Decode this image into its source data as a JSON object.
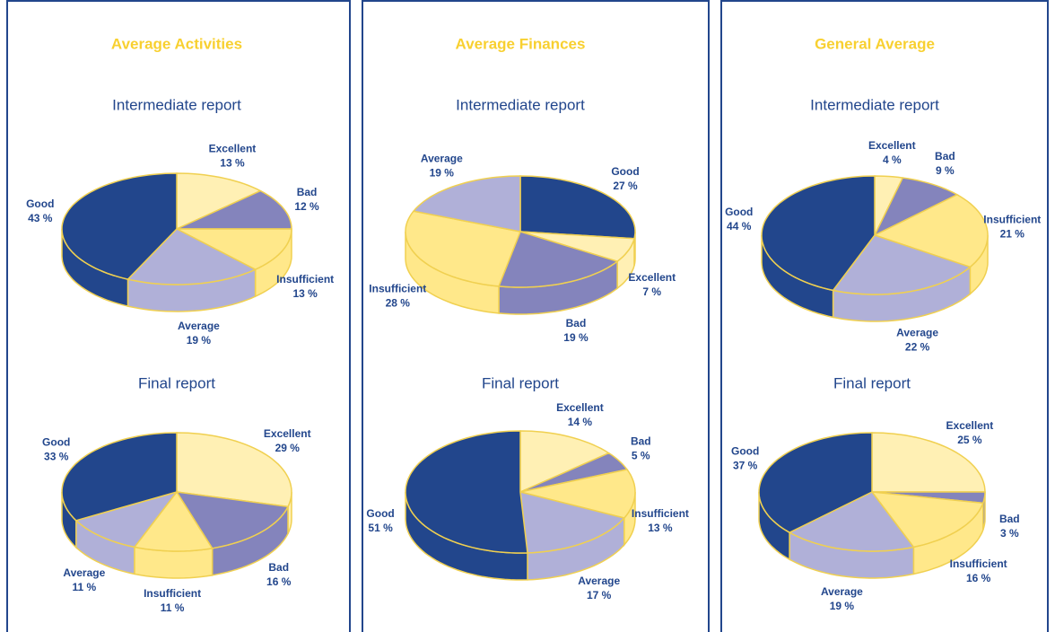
{
  "chart_data": [
    {
      "type": "pie",
      "title": "Average Activities",
      "subtitle": "Intermediate report",
      "categories": [
        "Excellent",
        "Bad",
        "Insufficient",
        "Average",
        "Good"
      ],
      "values": [
        13,
        12,
        13,
        19,
        43
      ],
      "value_labels": [
        "13 %",
        "12 %",
        "13 %",
        "19 %",
        "43 %"
      ],
      "colors": [
        "#fff0b4",
        "#8484bc",
        "#ffe88a",
        "#b0b0d8",
        "#22468c"
      ]
    },
    {
      "type": "pie",
      "subtitle": "Final report",
      "categories": [
        "Excellent",
        "Bad",
        "Insufficient",
        "Average",
        "Good"
      ],
      "values": [
        29,
        16,
        11,
        11,
        33
      ],
      "value_labels": [
        "29 %",
        "16 %",
        "11 %",
        "11 %",
        "33 %"
      ],
      "colors": [
        "#fff0b4",
        "#8484bc",
        "#ffe88a",
        "#b0b0d8",
        "#22468c"
      ]
    },
    {
      "type": "pie",
      "title": "Average Finances",
      "subtitle": "Intermediate report",
      "categories": [
        "Good",
        "Excellent",
        "Bad",
        "Insufficient",
        "Average"
      ],
      "values": [
        27,
        7,
        19,
        28,
        19
      ],
      "value_labels": [
        "27 %",
        "7 %",
        "19 %",
        "28 %",
        "19 %"
      ],
      "colors": [
        "#22468c",
        "#fff0b4",
        "#8484bc",
        "#ffe88a",
        "#b0b0d8"
      ]
    },
    {
      "type": "pie",
      "subtitle": "Final report",
      "categories": [
        "Excellent",
        "Bad",
        "Insufficient",
        "Average",
        "Good"
      ],
      "values": [
        14,
        5,
        13,
        17,
        51
      ],
      "value_labels": [
        "14 %",
        "5 %",
        "13 %",
        "17 %",
        "51 %"
      ],
      "colors": [
        "#fff0b4",
        "#8484bc",
        "#ffe88a",
        "#b0b0d8",
        "#22468c"
      ]
    },
    {
      "type": "pie",
      "title": "General Average",
      "subtitle": "Intermediate report",
      "categories": [
        "Excellent",
        "Bad",
        "Insufficient",
        "Average",
        "Good"
      ],
      "values": [
        4,
        9,
        21,
        22,
        44
      ],
      "value_labels": [
        "4 %",
        "9 %",
        "21 %",
        "22 %",
        "44 %"
      ],
      "colors": [
        "#fff0b4",
        "#8484bc",
        "#ffe88a",
        "#b0b0d8",
        "#22468c"
      ]
    },
    {
      "type": "pie",
      "subtitle": "Final report",
      "categories": [
        "Excellent",
        "Bad",
        "Insufficient",
        "Average",
        "Good"
      ],
      "values": [
        25,
        3,
        16,
        19,
        37
      ],
      "value_labels": [
        "25 %",
        "3 %",
        "16 %",
        "19 %",
        "37 %"
      ],
      "colors": [
        "#fff0b4",
        "#8484bc",
        "#ffe88a",
        "#b0b0d8",
        "#22468c"
      ]
    }
  ]
}
